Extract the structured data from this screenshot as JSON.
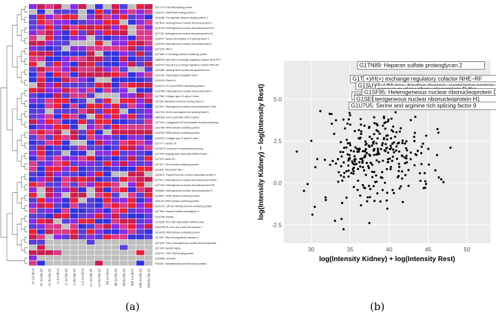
{
  "captions": {
    "left": "(a)",
    "right": "(b)"
  },
  "chart_data": [
    {
      "type": "heatmap",
      "columns": [
        "KI 1U-50-4",
        "KI 1U-50-25",
        "KI 5U-50-25",
        "LI 1U-50-4",
        "LI 1U-50-25",
        "LI 5U-50-25",
        "LU 1U-50-4",
        "LU 1U-50-25",
        "LU 5U-50-25",
        "IM 1U-50-4",
        "IM 1U-50-25",
        "IM 5U-50-25",
        "OM 1U-50-4",
        "OM 1U-50-25",
        "OM 5U-50-25"
      ],
      "rows": [
        "Q1T7Y9: FUS RNA binding protein",
        "Q1SU72: WW6 RNA binding protein 1",
        "Q1SQ66: Far upstream element binding protein 3",
        "Q1TNU0: Heterogeneous nuclear ribonucleoprotein F",
        "Q1SU78: Heterogeneous nuclear ribonucleoprotein H3",
        "Q1T741: Heterogeneous nuclear ribonucleoprotein H1",
        "Q1SHY7: Serine and arginine rich splicing factor 3",
        "Q1SF95: Heterogeneous nuclear ribonucleoprotein D",
        "Q1TQ78: Villin 1",
        "Q1TU55: K Homology domain-containing protein",
        "Q8BPD5: Na(+)/H(+) exchange regulatory cofactor NHE-RF3...",
        "Q1SYP0: Na(+)/H(+) exchange regulatory cofactor NHE-RF",
        "Q1SQB0: Splicing factor proline and glutamine rich",
        "Q1SY46: Transcription elongation factor",
        "Q1SXK8: Filamin A",
        "Q1SKG3: PC4 and SFRS1 interacting protein 1",
        "Q1UOB0: Heterogeneous nuclear ribonucleoprotein L",
        "Q1TP66: Collagen type XV alpha 1 chain",
        "Q1T0I8: Interleukin enhancer binding factor 3",
        "Q1T6S7: Heterogeneous nuclear ribonucleoprotein D like",
        "Q1U7U5: Serine and arginine rich splicing factor 9",
        "Q8HZQ5: Ezrin (Cytovillin) (Villin-2) (p81)",
        "Q1TVH4: Collagenase NC10/endostatin domain-containing...",
        "Q1UH60: RRM domain-containing protein",
        "Q1UR52: RRM domain-containing protein",
        "Q1SZD0: Collagen type VI alpha 3 chain",
        "Q1T7Y7: Keratin 78",
        "Q1TAE70: Enhancer of rudimentary homolog",
        "Q1TK43: Angiogenesis associated MIR6 domain...",
        "Q1T0I3: Lamin A/C",
        "Q1TQ77: S1H domain-containing protein",
        "Q1U8I9: Thioredoxin like 1",
        "Q1SAP4: Thyroid hormone receptor associated protein 3",
        "Q1TKL0: Heterogeneous nuclear ribonucleoprotein A0/B1",
        "Q1T7M3: Heterogeneous nuclear ribonucleoprotein A/B",
        "Q1B6A8: Heterogeneous nuclear ribonucleoprotein R...",
        "Q1UBH7: PRM domain-containing protein",
        "Q0KLZ0: RRM domain-containing protein",
        "Q1SUY3: LIM zinc-binding domain-containing protein",
        "Q1TN89: Heparan sulfate proteoglycan 2",
        "Q1SCH6: Moesin",
        "Q1SQ48: Rho GDP dissociation inhibitor beta",
        "A0A075D7S: Four and a half LIM domains 1",
        "Q1UBX8: PRM domain-containing protein",
        "Q1T6S7: Ras homolog family member A",
        "Q1TQ34: TIAL1 heterogeneous nuclear ribonucleoprotein",
        "Q1T346: Spectrin alpha",
        "Q1SHY7: TAF1 DNA binding protein",
        "Q1SW08: Vimentin",
        "P43346: Translationally-controlled tumor protein..."
      ],
      "colors": {
        "low": "#3333dd",
        "mid": "#8a2be2",
        "high": "#e8223a",
        "missing": "#c0c0c0"
      },
      "dendrogram": "left"
    },
    {
      "type": "scatter",
      "xlabel": "log(Intensity Kidney) + log(Intensity Rest)",
      "ylabel": "log(Intensity Kidney) − log(Intensity Rest)",
      "xlim": [
        26.5,
        53
      ],
      "ylim": [
        -3.6,
        7.3
      ],
      "xticks": [
        30,
        35,
        40,
        45,
        50
      ],
      "yticks": [
        -2.5,
        0.0,
        2.5,
        5.0
      ],
      "ytick_labels": [
        "-2.5",
        "0.0",
        "2.5",
        "5.0"
      ],
      "grid": true,
      "background": "#ebebeb",
      "annotations": [
        {
          "text": "G1TN89: Heparan sulfate proteoglycan 2",
          "x": 36.2,
          "y": 6.9
        },
        {
          "text": "G1T346: Spectrin alpha",
          "x": 35.3,
          "y": 6.1
        },
        {
          "text": "+)/H(+) exchange regulatory cofactor NHE−RF",
          "x": 37.0,
          "y": 6.1
        },
        {
          "text": "G1SUY3: LIM zinc−binding domain−containing protein",
          "x": 36.0,
          "y": 5.7
        },
        {
          "text": "eneous nuclear ribonucleoprotein D like",
          "x": 38.5,
          "y": 5.5
        },
        {
          "text": "Q8HZQ5: Ezrin (Cytovillin) (Villin−2) (p81)",
          "x": 35.5,
          "y": 5.1
        },
        {
          "text": "G1SF95: Heterogeneous nuclear ribonucleoprotein D",
          "x": 36.8,
          "y": 5.3
        },
        {
          "text": "G1SE95: Filamin A",
          "x": 35.8,
          "y": 4.9
        },
        {
          "text": "terogeneous nuclear ribonucleoprotein H1",
          "x": 38.2,
          "y": 4.9
        },
        {
          "text": "G1U7U5: Serine and arginine rich splicing factor 9",
          "x": 35.1,
          "y": 4.5
        }
      ]
    }
  ]
}
